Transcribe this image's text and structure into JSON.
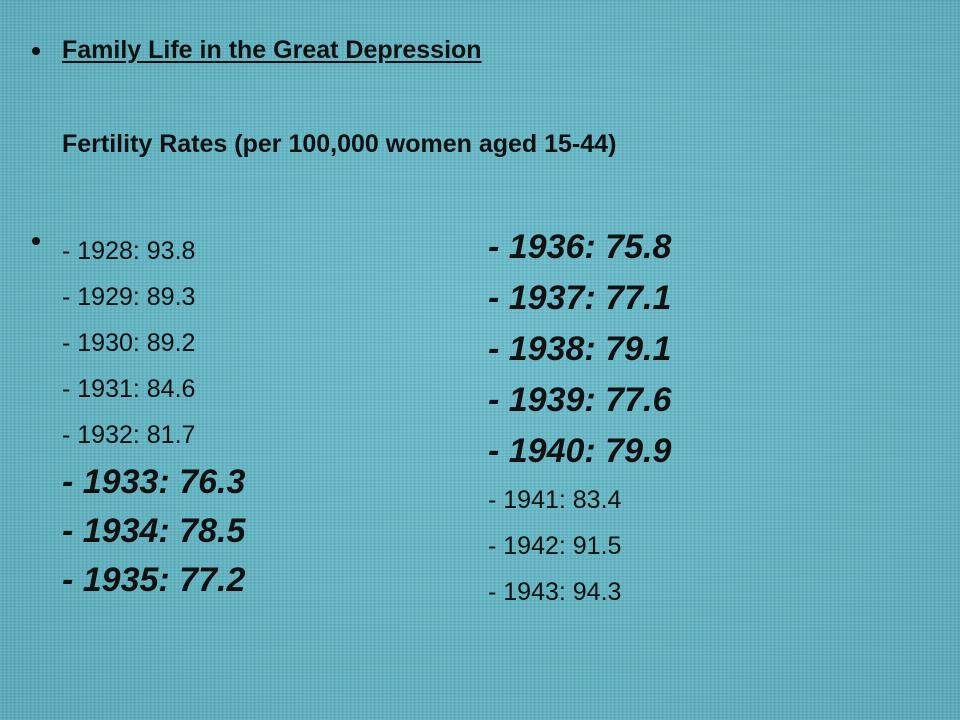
{
  "slide": {
    "title": "Family Life in the Great Depression",
    "subtitle": "Fertility Rates (per 100,000 women aged 15-44)"
  },
  "rates_left": [
    {
      "text": "- 1928: 93.8",
      "year": 1928,
      "rate": 93.8,
      "emphasis": false
    },
    {
      "text": "- 1929: 89.3",
      "year": 1929,
      "rate": 89.3,
      "emphasis": false
    },
    {
      "text": "- 1930: 89.2",
      "year": 1930,
      "rate": 89.2,
      "emphasis": false
    },
    {
      "text": "- 1931: 84.6",
      "year": 1931,
      "rate": 84.6,
      "emphasis": false
    },
    {
      "text": "- 1932: 81.7",
      "year": 1932,
      "rate": 81.7,
      "emphasis": false
    },
    {
      "text": "- 1933: 76.3",
      "year": 1933,
      "rate": 76.3,
      "emphasis": true
    },
    {
      "text": "- 1934: 78.5",
      "year": 1934,
      "rate": 78.5,
      "emphasis": true
    },
    {
      "text": "- 1935: 77.2",
      "year": 1935,
      "rate": 77.2,
      "emphasis": true
    }
  ],
  "rates_right": [
    {
      "text": "- 1936: 75.8",
      "year": 1936,
      "rate": 75.8,
      "emphasis": true
    },
    {
      "text": "- 1937: 77.1",
      "year": 1937,
      "rate": 77.1,
      "emphasis": true
    },
    {
      "text": "- 1938: 79.1",
      "year": 1938,
      "rate": 79.1,
      "emphasis": true
    },
    {
      "text": "- 1939: 77.6",
      "year": 1939,
      "rate": 77.6,
      "emphasis": true
    },
    {
      "text": "- 1940: 79.9",
      "year": 1940,
      "rate": 79.9,
      "emphasis": true
    },
    {
      "text": "- 1941: 83.4",
      "year": 1941,
      "rate": 83.4,
      "emphasis": false
    },
    {
      "text": "- 1942: 91.5",
      "year": 1942,
      "rate": 91.5,
      "emphasis": false
    },
    {
      "text": "- 1943: 94.3",
      "year": 1943,
      "rate": 94.3,
      "emphasis": false
    }
  ],
  "colors": {
    "background": "#63b8c7",
    "text": "#111111"
  }
}
